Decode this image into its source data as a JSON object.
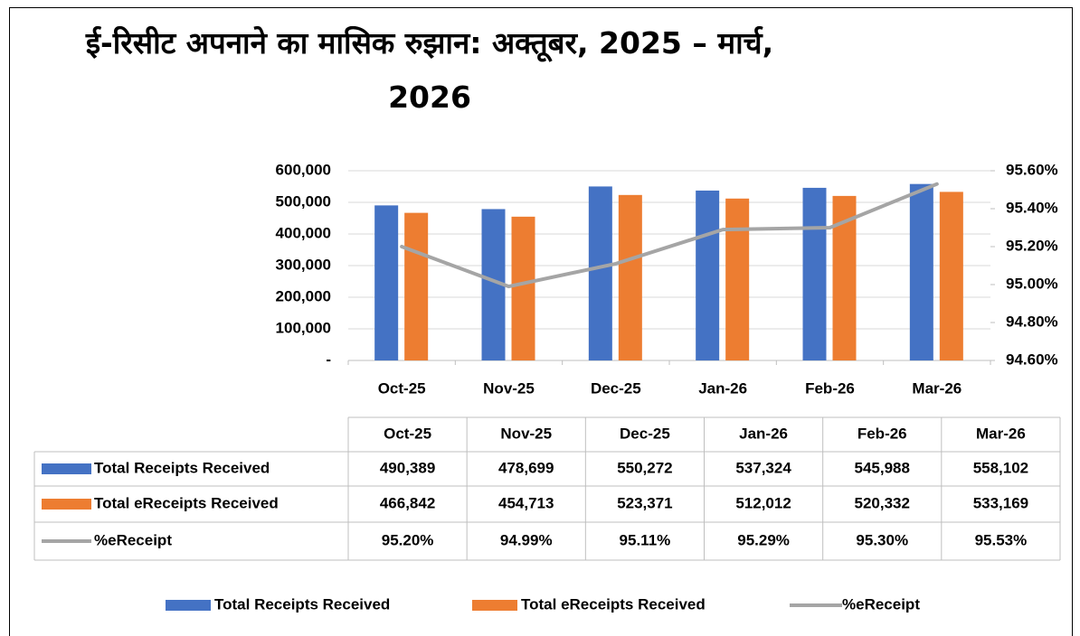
{
  "chart_data": {
    "type": "bar-line-table",
    "title": "ई-रिसीट अपनाने का मासिक रुझान: अक्तूबर, 2025 – मार्च, 2026",
    "categories": [
      "Oct-25",
      "Nov-25",
      "Dec-25",
      "Jan-26",
      "Feb-26",
      "Mar-26"
    ],
    "series": [
      {
        "name": "Total Receipts Received",
        "color": "#4472c4",
        "type": "bar",
        "values": [
          490389,
          478699,
          550272,
          537324,
          545988,
          558102
        ],
        "value_labels": [
          "490,389",
          "478,699",
          "550,272",
          "537,324",
          "545,988",
          "558,102"
        ]
      },
      {
        "name": "Total eReceipts Received",
        "color": "#ed7d31",
        "type": "bar",
        "values": [
          466842,
          454713,
          523371,
          512012,
          520332,
          533169
        ],
        "value_labels": [
          "466,842",
          "454,713",
          "523,371",
          "512,012",
          "520,332",
          "533,169"
        ]
      },
      {
        "name": "%eReceipt",
        "color": "#a5a5a5",
        "type": "line",
        "axis": "y2",
        "values": [
          95.2,
          94.99,
          95.11,
          95.29,
          95.3,
          95.53
        ],
        "value_labels": [
          "95.20%",
          "94.99%",
          "95.11%",
          "95.29%",
          "95.30%",
          "95.53%"
        ]
      }
    ],
    "ylim": [
      0,
      600000
    ],
    "yticks": [
      {
        "value": 0,
        "label": "-"
      },
      {
        "value": 100000,
        "label": "100,000"
      },
      {
        "value": 200000,
        "label": "200,000"
      },
      {
        "value": 300000,
        "label": "300,000"
      },
      {
        "value": 400000,
        "label": "400,000"
      },
      {
        "value": 500000,
        "label": "500,000"
      },
      {
        "value": 600000,
        "label": "600,000"
      }
    ],
    "y2lim": [
      94.6,
      95.6
    ],
    "y2ticks": [
      {
        "value": 94.6,
        "label": "94.60%"
      },
      {
        "value": 94.8,
        "label": "94.80%"
      },
      {
        "value": 95.0,
        "label": "95.00%"
      },
      {
        "value": 95.2,
        "label": "95.20%"
      },
      {
        "value": 95.4,
        "label": "95.40%"
      },
      {
        "value": 95.6,
        "label": "95.60%"
      }
    ],
    "grid": true
  }
}
